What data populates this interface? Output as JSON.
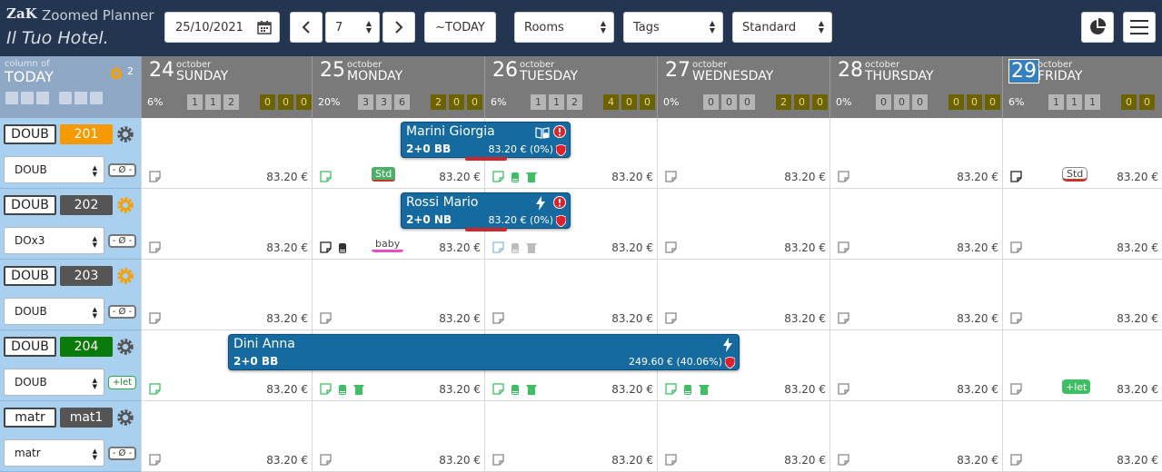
{
  "topbar": {
    "logo": "ZaK",
    "app_title": "Zoomed Planner",
    "hotel_name": "Il Tuo Hotel.",
    "date_value": "25/10/2021",
    "days_value": "7",
    "today_label": "~TODAY",
    "rooms_select": "Rooms",
    "tags_select": "Tags",
    "view_select": "Standard",
    "prev_glyph": "‹",
    "next_glyph": "›"
  },
  "grid_header": {
    "col_today_small": "column of",
    "col_today_big": "TODAY",
    "gear_count": "2"
  },
  "days": [
    {
      "num": "24",
      "month": "october",
      "name": "SUNDAY",
      "pct": "6%",
      "grey": [
        "1",
        "1",
        "2"
      ],
      "gold": [
        "0",
        "0",
        "0"
      ],
      "today": false
    },
    {
      "num": "25",
      "month": "october",
      "name": "MONDAY",
      "pct": "20%",
      "grey": [
        "3",
        "3",
        "6"
      ],
      "gold": [
        "2",
        "0",
        "0"
      ],
      "today": false
    },
    {
      "num": "26",
      "month": "october",
      "name": "TUESDAY",
      "pct": "6%",
      "grey": [
        "1",
        "1",
        "2"
      ],
      "gold": [
        "4",
        "0",
        "0"
      ],
      "today": false
    },
    {
      "num": "27",
      "month": "october",
      "name": "WEDNESDAY",
      "pct": "0%",
      "grey": [
        "0",
        "0",
        "0"
      ],
      "gold": [
        "2",
        "0",
        "0"
      ],
      "today": false
    },
    {
      "num": "28",
      "month": "october",
      "name": "THURSDAY",
      "pct": "0%",
      "grey": [
        "0",
        "0",
        "0"
      ],
      "gold": [
        "0",
        "0",
        "0"
      ],
      "today": false
    },
    {
      "num": "29",
      "month": "october",
      "name": "FRIDAY",
      "pct": "6%",
      "grey": [
        "1",
        "1",
        "1"
      ],
      "gold": [
        "0",
        "0"
      ],
      "today": true
    }
  ],
  "rooms": [
    {
      "type": "DOUB",
      "number": "201",
      "number_color": "#f59a00",
      "gear_color": "#555555",
      "rate": "DOUB",
      "tag": "- Ø -",
      "tag_kind": "none"
    },
    {
      "type": "DOUB",
      "number": "202",
      "number_color": "#555555",
      "gear_color": "#f5a000",
      "rate": "DOx3",
      "tag": "- Ø -",
      "tag_kind": "none"
    },
    {
      "type": "DOUB",
      "number": "203",
      "number_color": "#555555",
      "gear_color": "#f5a000",
      "rate": "DOUB",
      "tag": "- Ø -",
      "tag_kind": "none"
    },
    {
      "type": "DOUB",
      "number": "204",
      "number_color": "#0a7a0a",
      "gear_color": "#555555",
      "rate": "DOUB",
      "tag": "+let",
      "tag_kind": "let"
    },
    {
      "type": "matr",
      "number": "mat1",
      "number_color": "#555555",
      "gear_color": "#555555",
      "rate": "matr",
      "tag": "- Ø -",
      "tag_kind": "none"
    }
  ],
  "cell_price": "83.20 €",
  "cell_tags": {
    "std": "Std",
    "baby": "baby",
    "let": "+let"
  },
  "bookings": [
    {
      "guest": "Marini Giorgia",
      "occupancy": "2+0 BB",
      "price": "83.20 € (0%)"
    },
    {
      "guest": "Rossi Mario",
      "occupancy": "2+0 NB",
      "price": "83.20 € (0%)"
    },
    {
      "guest": "Dini Anna",
      "occupancy": "2+0 BB",
      "price": "249.60 € (40.06%)"
    }
  ]
}
